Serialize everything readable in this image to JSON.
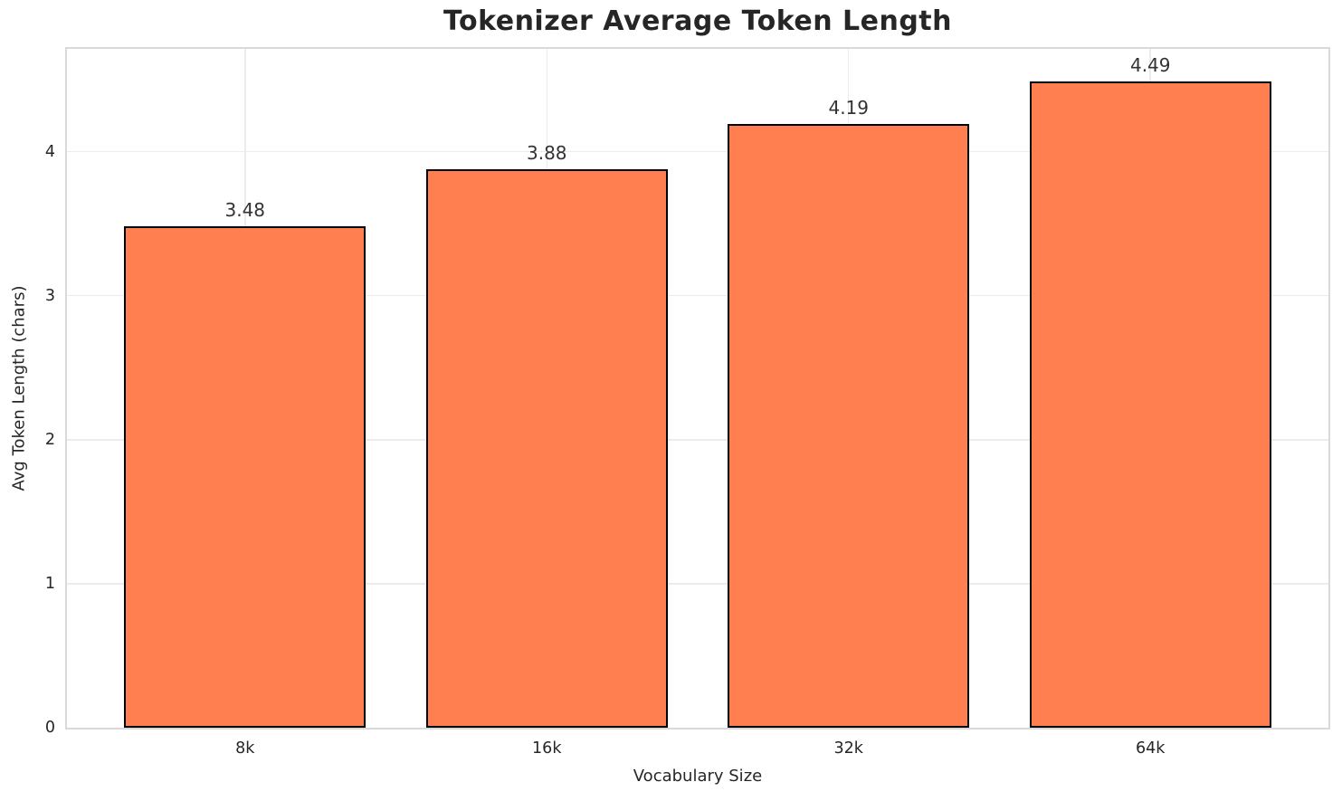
{
  "chart_data": {
    "type": "bar",
    "title": "Tokenizer Average Token Length",
    "xlabel": "Vocabulary Size",
    "ylabel": "Avg Token Length (chars)",
    "categories": [
      "8k",
      "16k",
      "32k",
      "64k"
    ],
    "values": [
      3.48,
      3.88,
      4.19,
      4.49
    ],
    "value_labels": [
      "3.48",
      "3.88",
      "4.19",
      "4.49"
    ],
    "yticks": [
      0,
      1,
      2,
      3,
      4
    ],
    "ytick_labels": [
      "0",
      "1",
      "2",
      "3",
      "4"
    ],
    "ylim": [
      0,
      4.7145
    ],
    "grid": true,
    "legend": "none",
    "colors": {
      "bar_fill": "#ff7f50",
      "bar_edge": "#000000",
      "grid": "#ececec",
      "spine": "#d9d9d9",
      "text": "#262626",
      "value_label_text": "#333333",
      "background": "#ffffff"
    }
  }
}
